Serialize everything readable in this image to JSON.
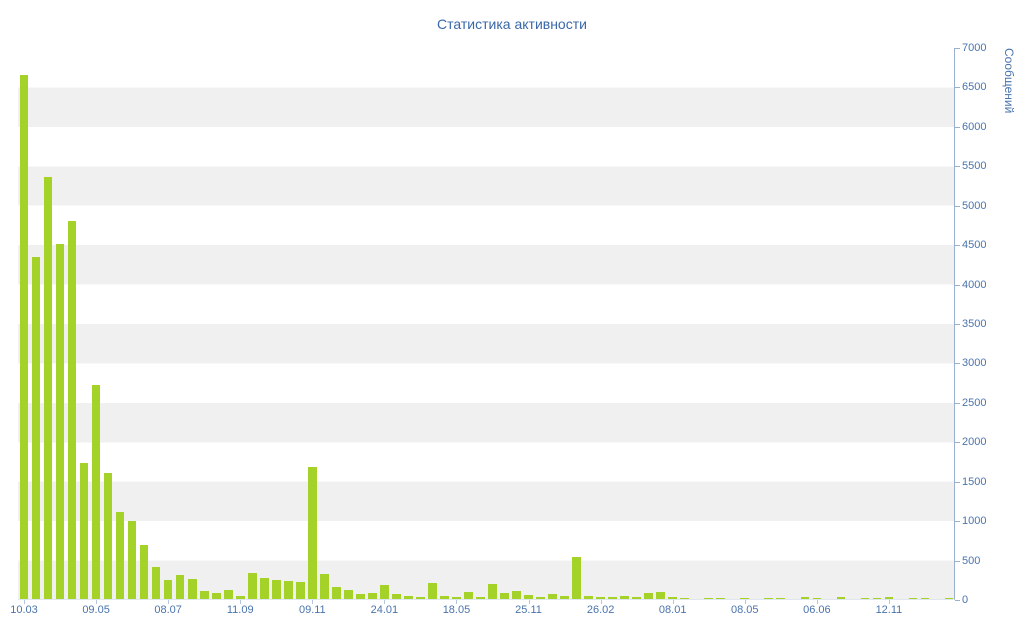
{
  "chart_data": {
    "type": "bar",
    "title": "Статистика активности",
    "ylabel": "Сообщений",
    "xlabel": "",
    "ylim": [
      0,
      7000
    ],
    "y_tick_step": 500,
    "y_ticks": [
      0,
      500,
      1000,
      1500,
      2000,
      2500,
      3000,
      3500,
      4000,
      4500,
      5000,
      5500,
      6000,
      6500,
      7000
    ],
    "grid": "alternating-horizontal-stripes",
    "legend": "off",
    "values": [
      6650,
      4340,
      5350,
      4500,
      4790,
      1730,
      2720,
      1600,
      1100,
      990,
      690,
      400,
      240,
      300,
      250,
      100,
      70,
      120,
      40,
      330,
      270,
      240,
      230,
      220,
      1670,
      320,
      150,
      120,
      60,
      80,
      180,
      60,
      40,
      30,
      200,
      40,
      30,
      90,
      30,
      190,
      70,
      100,
      50,
      30,
      60,
      40,
      530,
      40,
      25,
      25,
      35,
      25,
      80,
      90,
      20,
      15,
      0,
      10,
      15,
      0,
      10,
      0,
      15,
      10,
      0,
      20,
      10,
      0,
      25,
      0,
      15,
      10,
      20,
      0,
      15,
      10,
      0,
      15
    ],
    "x_tick_labels": [
      {
        "index": 0,
        "label": "10.03"
      },
      {
        "index": 6,
        "label": "09.05"
      },
      {
        "index": 12,
        "label": "08.07"
      },
      {
        "index": 18,
        "label": "11.09"
      },
      {
        "index": 24,
        "label": "09.11"
      },
      {
        "index": 30,
        "label": "24.01"
      },
      {
        "index": 36,
        "label": "18.05"
      },
      {
        "index": 42,
        "label": "25.11"
      },
      {
        "index": 48,
        "label": "26.02"
      },
      {
        "index": 54,
        "label": "08.01"
      },
      {
        "index": 60,
        "label": "08.05"
      },
      {
        "index": 66,
        "label": "06.06"
      },
      {
        "index": 72,
        "label": "12.11"
      }
    ],
    "colors": {
      "bar": "#a5d228",
      "stripe": "#f0f0f0",
      "axis_text": "#4a74ad",
      "title": "#3a68a8",
      "axis_line": "#9ab1cd"
    }
  }
}
